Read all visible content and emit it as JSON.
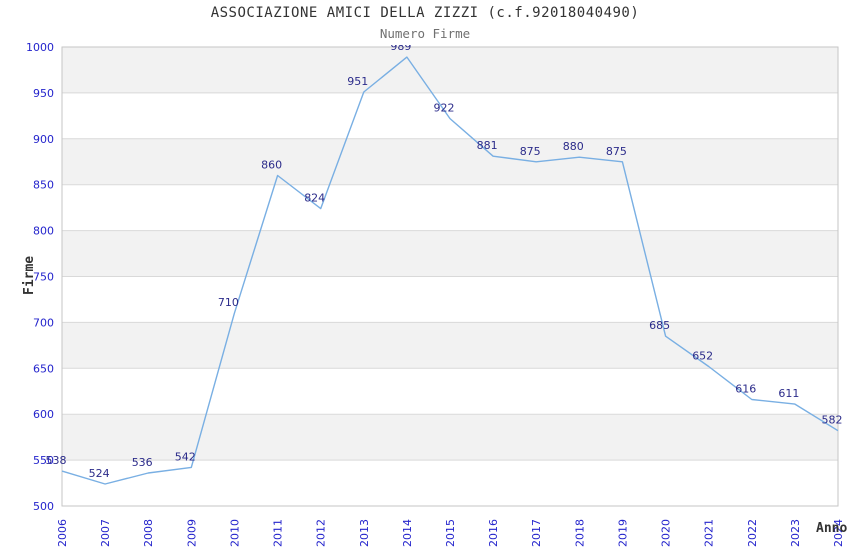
{
  "title": "ASSOCIAZIONE AMICI DELLA ZIZZI (c.f.92018040490)",
  "subtitle": "Numero Firme",
  "chart_data": {
    "type": "line",
    "title": "ASSOCIAZIONE AMICI DELLA ZIZZI (c.f.92018040490)",
    "subtitle": "Numero Firme",
    "xlabel": "Anno",
    "ylabel": "Firme",
    "x": [
      2006,
      2007,
      2008,
      2009,
      2010,
      2011,
      2012,
      2013,
      2014,
      2015,
      2016,
      2017,
      2018,
      2019,
      2020,
      2021,
      2022,
      2023,
      2024
    ],
    "values": [
      538,
      524,
      536,
      542,
      710,
      860,
      824,
      951,
      989,
      922,
      881,
      875,
      880,
      875,
      685,
      652,
      616,
      611,
      582
    ],
    "ylim": [
      500,
      1000
    ],
    "ytick_step": 50,
    "grid": true,
    "legend_position": "none",
    "colors": {
      "line": "#79afe3",
      "point_label": "#2b2b8a",
      "tick_label": "#2424cc",
      "band_fill": "#f2f2f2",
      "gridline": "#d9d9d9",
      "plot_border": "#c6c6c6",
      "title_text": "#333333",
      "subtitle_text": "#707070",
      "axis_title_text": "#333333"
    }
  }
}
